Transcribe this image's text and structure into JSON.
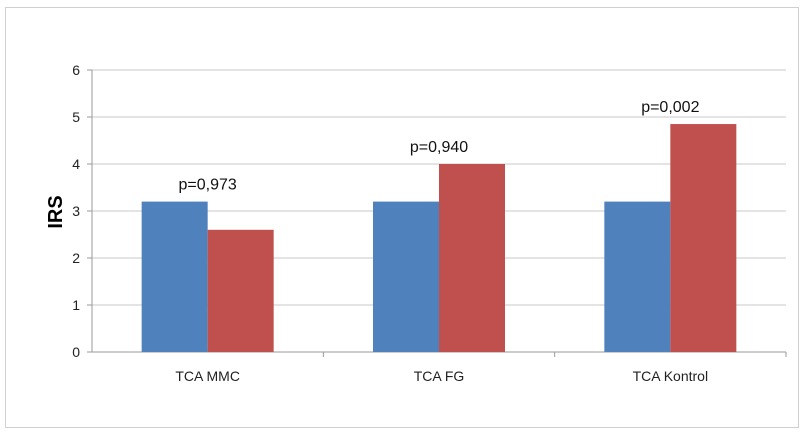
{
  "chart_data": {
    "type": "bar",
    "title": "",
    "xlabel": "",
    "ylabel": "IRS",
    "ylim": [
      0,
      6
    ],
    "yticks": [
      0,
      1,
      2,
      3,
      4,
      5,
      6
    ],
    "grid": true,
    "legend": "none",
    "categories": [
      "TCA MMC",
      "TCA FG",
      "TCA Kontrol"
    ],
    "series": [
      {
        "color": "#4f81bd",
        "values": [
          3.2,
          3.2,
          3.2
        ]
      },
      {
        "color": "#c0504d",
        "values": [
          2.6,
          4.0,
          4.85
        ]
      }
    ],
    "annotations": [
      "p=0,973",
      "p=0,940",
      "p=0,002"
    ]
  }
}
